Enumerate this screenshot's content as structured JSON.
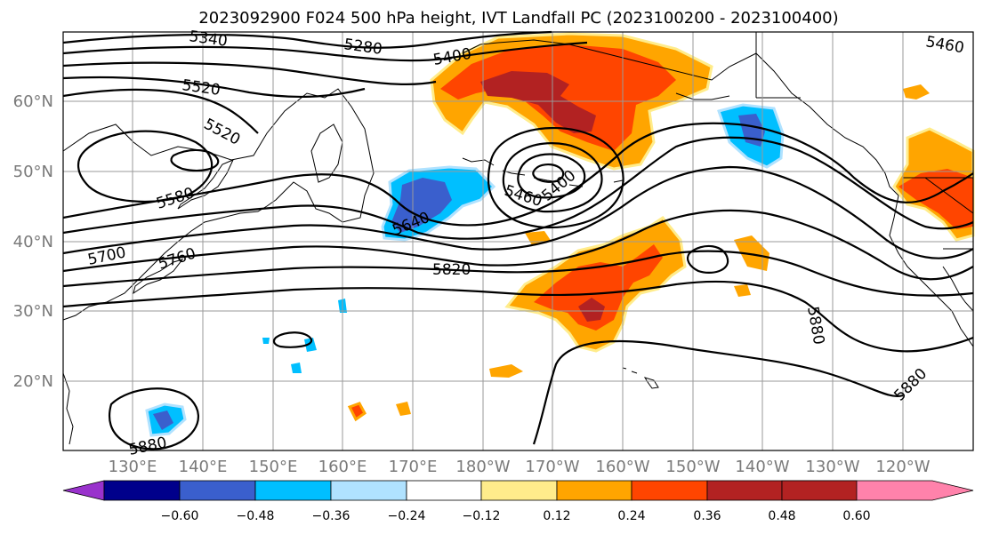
{
  "title": "2023092900 F024 500 hPa height, IVT Landfall PC (2023100200 - 2023100400)",
  "lat_labels": [
    "60°N",
    "50°N",
    "40°N",
    "30°N",
    "20°N"
  ],
  "lon_labels": [
    "130°E",
    "140°E",
    "150°E",
    "160°E",
    "170°E",
    "180°W",
    "170°W",
    "160°W",
    "150°W",
    "140°W",
    "130°W",
    "120°W"
  ],
  "contour_labels": [
    "5340",
    "5280",
    "5400",
    "5460",
    "5520",
    "5520",
    "5580",
    "5640",
    "5460",
    "5400",
    "5700",
    "5760",
    "5820",
    "5880",
    "5880",
    "5880"
  ],
  "colorbar": {
    "ticks": [
      "−0.60",
      "−0.48",
      "−0.36",
      "−0.24",
      "−0.12",
      "0.12",
      "0.24",
      "0.36",
      "0.48",
      "0.60"
    ],
    "colors": [
      "#9932cc",
      "#00008b",
      "#3a5fcd",
      "#00bfff",
      "#b0e2ff",
      "#ffffff",
      "#ffec8b",
      "#ffa500",
      "#ff4500",
      "#b22222",
      "#ff82ab"
    ]
  }
}
